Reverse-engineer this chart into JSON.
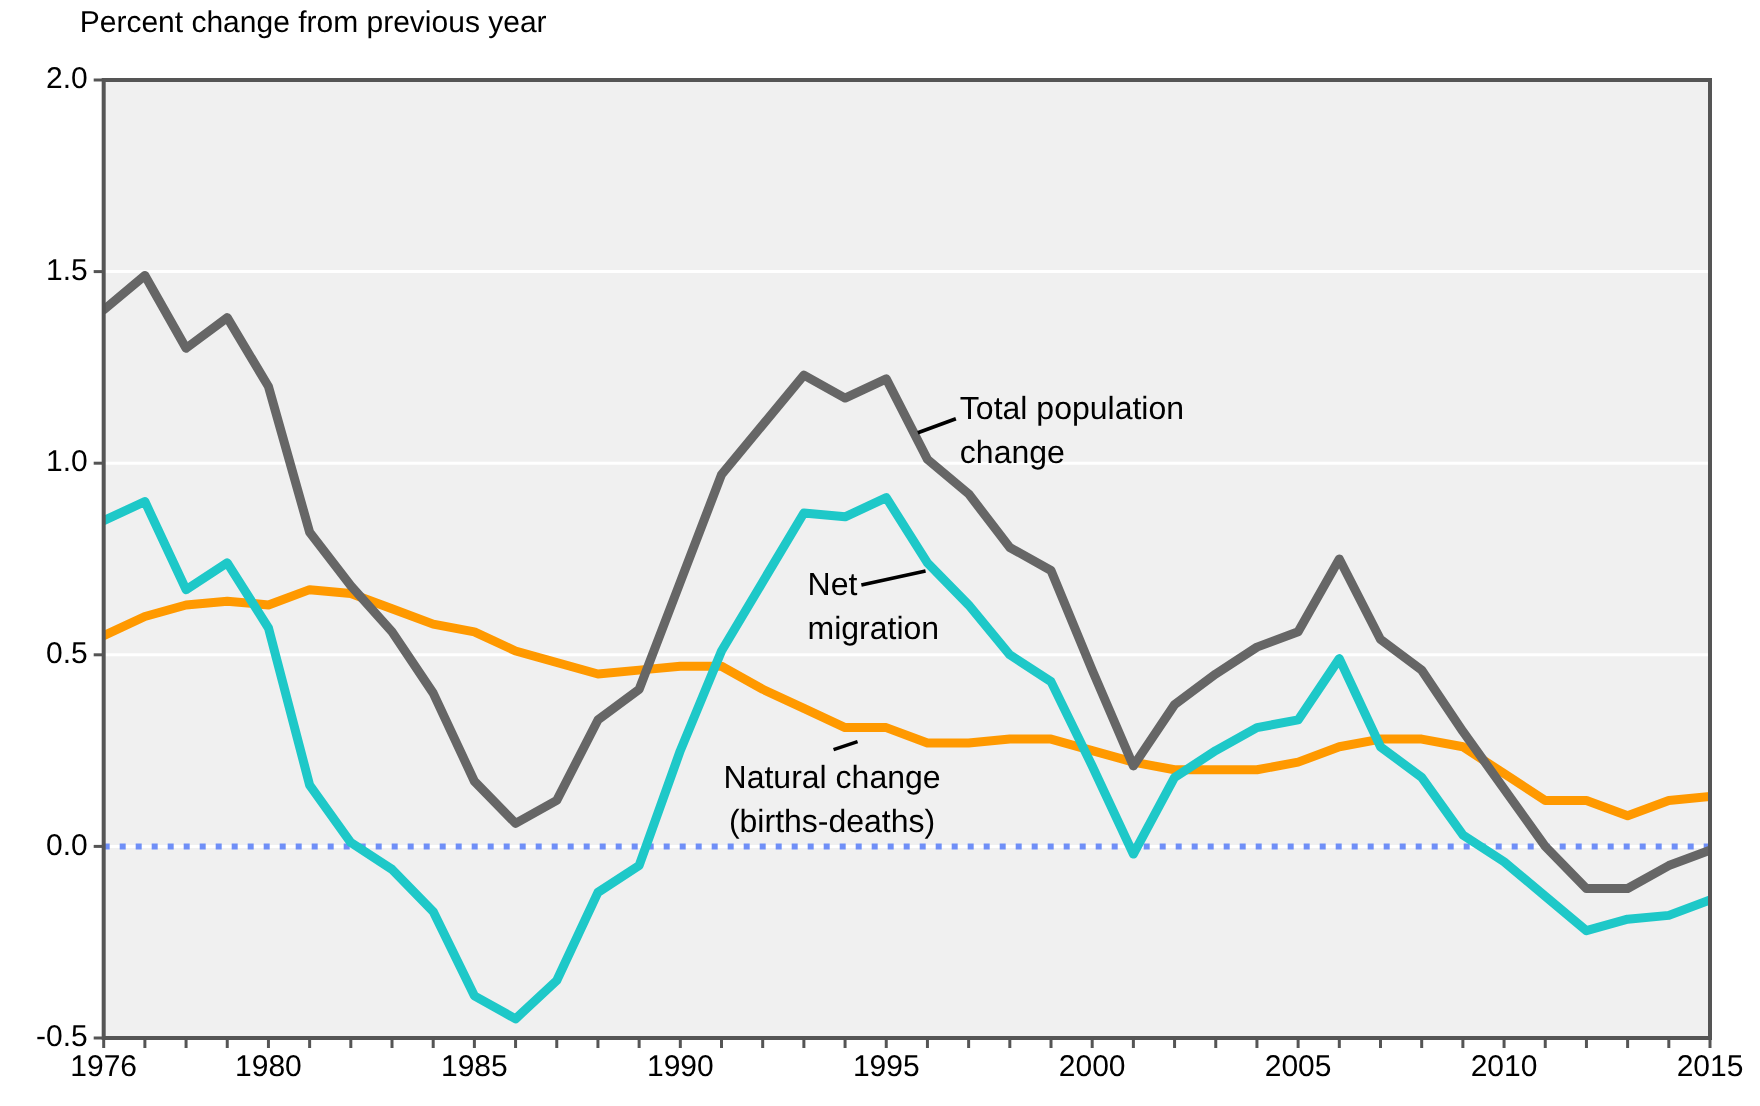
{
  "chart_data": {
    "type": "line",
    "ylabel": "Percent change from previous year",
    "x": [
      1976,
      1977,
      1978,
      1979,
      1980,
      1981,
      1982,
      1983,
      1984,
      1985,
      1986,
      1987,
      1988,
      1989,
      1990,
      1991,
      1992,
      1993,
      1994,
      1995,
      1996,
      1997,
      1998,
      1999,
      2000,
      2001,
      2002,
      2003,
      2004,
      2005,
      2006,
      2007,
      2008,
      2009,
      2010,
      2011,
      2012,
      2013,
      2014,
      2015
    ],
    "series": [
      {
        "name": "Total population change",
        "color": "#666666",
        "values": [
          1.4,
          1.49,
          1.3,
          1.38,
          1.2,
          0.82,
          0.68,
          0.56,
          0.4,
          0.17,
          0.06,
          0.12,
          0.33,
          0.41,
          0.69,
          0.97,
          1.1,
          1.23,
          1.17,
          1.22,
          1.01,
          0.92,
          0.78,
          0.72,
          0.46,
          0.21,
          0.37,
          0.45,
          0.52,
          0.56,
          0.75,
          0.54,
          0.46,
          0.3,
          0.15,
          0.0,
          -0.11,
          -0.11,
          -0.05,
          -0.01
        ]
      },
      {
        "name": "Net migration",
        "color": "#1ec8c8",
        "values": [
          0.85,
          0.9,
          0.67,
          0.74,
          0.57,
          0.16,
          0.01,
          -0.06,
          -0.17,
          -0.39,
          -0.45,
          -0.35,
          -0.12,
          -0.05,
          0.25,
          0.51,
          0.69,
          0.87,
          0.86,
          0.91,
          0.74,
          0.63,
          0.5,
          0.43,
          0.21,
          -0.02,
          0.18,
          0.25,
          0.31,
          0.33,
          0.49,
          0.26,
          0.18,
          0.03,
          -0.04,
          -0.13,
          -0.22,
          -0.19,
          -0.18,
          -0.14
        ]
      },
      {
        "name": "Natural change (births-deaths)",
        "color": "#ff9900",
        "values": [
          0.55,
          0.6,
          0.63,
          0.64,
          0.63,
          0.67,
          0.66,
          0.62,
          0.58,
          0.56,
          0.51,
          0.48,
          0.45,
          0.46,
          0.47,
          0.47,
          0.41,
          0.36,
          0.31,
          0.31,
          0.27,
          0.27,
          0.28,
          0.28,
          0.25,
          0.22,
          0.2,
          0.2,
          0.2,
          0.22,
          0.26,
          0.28,
          0.28,
          0.26,
          0.19,
          0.12,
          0.12,
          0.08,
          0.12,
          0.13
        ]
      }
    ],
    "xlim": [
      1976,
      2015
    ],
    "xticks": [
      1976,
      {
        "value": 1977,
        "label": null
      },
      {
        "value": 1978,
        "label": null
      },
      {
        "value": 1979,
        "label": null
      },
      1980,
      {
        "value": 1981,
        "label": null
      },
      {
        "value": 1982,
        "label": null
      },
      {
        "value": 1983,
        "label": null
      },
      {
        "value": 1984,
        "label": null
      },
      1985,
      {
        "value": 1986,
        "label": null
      },
      {
        "value": 1987,
        "label": null
      },
      {
        "value": 1988,
        "label": null
      },
      {
        "value": 1989,
        "label": null
      },
      1990,
      {
        "value": 1991,
        "label": null
      },
      {
        "value": 1992,
        "label": null
      },
      {
        "value": 1993,
        "label": null
      },
      {
        "value": 1994,
        "label": null
      },
      1995,
      {
        "value": 1996,
        "label": null
      },
      {
        "value": 1997,
        "label": null
      },
      {
        "value": 1998,
        "label": null
      },
      {
        "value": 1999,
        "label": null
      },
      2000,
      {
        "value": 2001,
        "label": null
      },
      {
        "value": 2002,
        "label": null
      },
      {
        "value": 2003,
        "label": null
      },
      {
        "value": 2004,
        "label": null
      },
      2005,
      {
        "value": 2006,
        "label": null
      },
      {
        "value": 2007,
        "label": null
      },
      {
        "value": 2008,
        "label": null
      },
      {
        "value": 2009,
        "label": null
      },
      2010,
      {
        "value": 2011,
        "label": null
      },
      {
        "value": 2012,
        "label": null
      },
      {
        "value": 2013,
        "label": null
      },
      {
        "value": 2014,
        "label": null
      },
      2015
    ],
    "ylim": [
      -0.5,
      2.0
    ],
    "yticks": [
      {
        "value": -0.5,
        "label": "-0.5"
      },
      {
        "value": 0,
        "label": "0.0"
      },
      {
        "value": 0.5,
        "label": "0.5"
      },
      {
        "value": 1,
        "label": "1.0"
      },
      {
        "value": 1.5,
        "label": "1.5"
      },
      {
        "value": 2,
        "label": "2.0"
      }
    ],
    "ref_lines": [
      {
        "axis": "y",
        "value": 0,
        "color": "#6f8ff7",
        "line_style": "dotted"
      }
    ],
    "grid": "y",
    "legend": false,
    "marker": "none",
    "line_style": "solid"
  }
}
